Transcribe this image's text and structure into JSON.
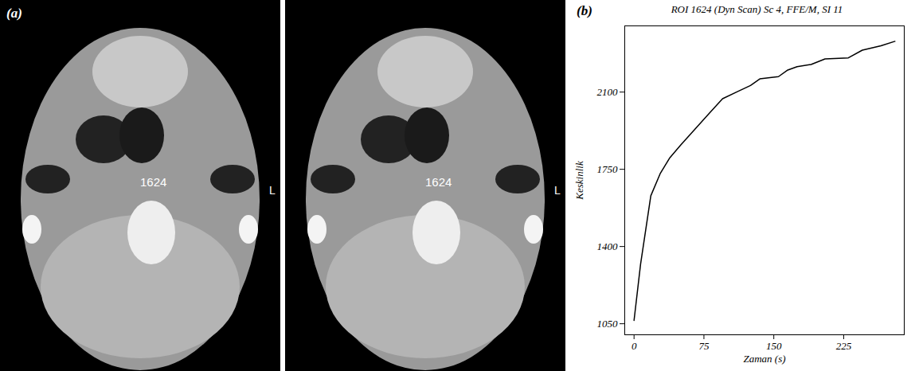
{
  "image_panel": {
    "panel_label": "(a)",
    "images": [
      {
        "roi_label": "1624",
        "side_label": "L"
      },
      {
        "roi_label": "1624",
        "side_label": "L"
      }
    ]
  },
  "chart_data": {
    "type": "line",
    "panel_label": "(b)",
    "title": "ROI 1624 (Dyn Scan) Sc 4, FFE/M, SI 11",
    "xlabel": "Zaman (s)",
    "ylabel": "Keskinlik",
    "x": [
      0,
      7,
      18,
      28,
      38,
      50,
      65,
      80,
      95,
      110,
      125,
      135,
      155,
      165,
      175,
      190,
      205,
      230,
      245,
      265,
      280
    ],
    "values": [
      1065,
      1320,
      1630,
      1730,
      1800,
      1860,
      1930,
      2000,
      2070,
      2100,
      2130,
      2160,
      2170,
      2200,
      2215,
      2225,
      2250,
      2255,
      2290,
      2310,
      2330
    ],
    "color": "#000000",
    "xlim": [
      -10,
      290
    ],
    "xticks": [
      0,
      75,
      150,
      225
    ],
    "ylim": [
      1000,
      2400
    ],
    "yticks": [
      1050,
      1400,
      1750,
      2100
    ]
  }
}
